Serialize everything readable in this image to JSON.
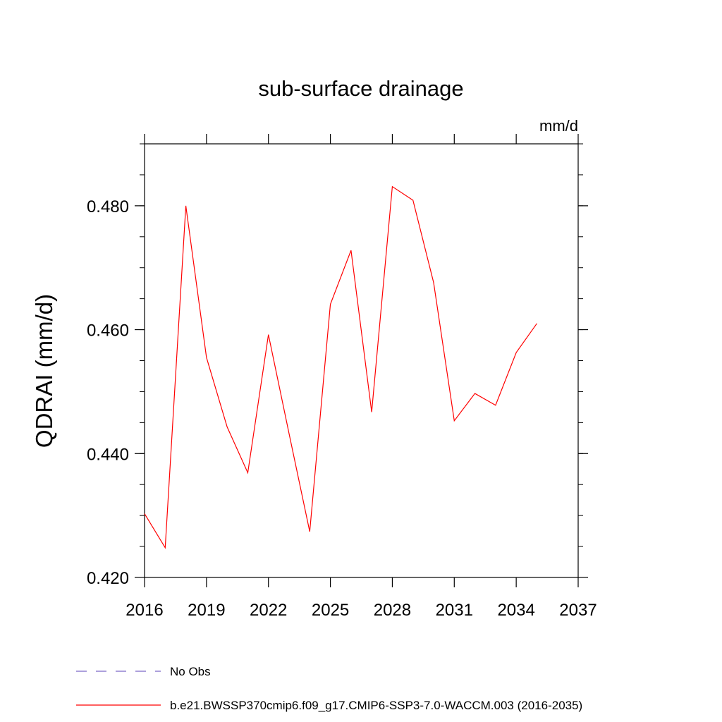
{
  "chart_data": {
    "type": "line",
    "title": "sub-surface drainage",
    "units": "mm/d",
    "xlabel": "",
    "ylabel": "QDRAI  (mm/d)",
    "xlim": [
      2016,
      2037
    ],
    "ylim": [
      0.42,
      0.49
    ],
    "x_ticks": [
      "2016",
      "2019",
      "2022",
      "2025",
      "2028",
      "2031",
      "2034",
      "2037"
    ],
    "y_ticks": [
      "0.420",
      "0.440",
      "0.460",
      "0.480"
    ],
    "x_tick_values": [
      2016,
      2019,
      2022,
      2025,
      2028,
      2031,
      2034,
      2037
    ],
    "y_tick_values": [
      0.42,
      0.44,
      0.46,
      0.48
    ],
    "grid": false,
    "legend_position": "bottom",
    "series": [
      {
        "name": "b.e21.BWSSP370cmip6.f09_g17.CMIP6-SSP3-7.0-WACCM.003 (2016-2035)",
        "color": "#ff0000",
        "style": "solid",
        "x": [
          2016,
          2017,
          2018,
          2019,
          2020,
          2021,
          2022,
          2023,
          2024,
          2025,
          2026,
          2027,
          2028,
          2029,
          2030,
          2031,
          2032,
          2033,
          2034,
          2035
        ],
        "y": [
          0.4303,
          0.4248,
          0.48,
          0.4555,
          0.4443,
          0.4369,
          0.4592,
          0.4432,
          0.4274,
          0.4641,
          0.4728,
          0.4467,
          0.4831,
          0.4809,
          0.4676,
          0.4453,
          0.4497,
          0.4478,
          0.4563,
          0.461
        ]
      }
    ],
    "legend": [
      {
        "label": "No Obs",
        "color": "#7b68c8",
        "style": "dashed"
      },
      {
        "label": "b.e21.BWSSP370cmip6.f09_g17.CMIP6-SSP3-7.0-WACCM.003 (2016-2035)",
        "color": "#ff0000",
        "style": "solid"
      }
    ]
  }
}
